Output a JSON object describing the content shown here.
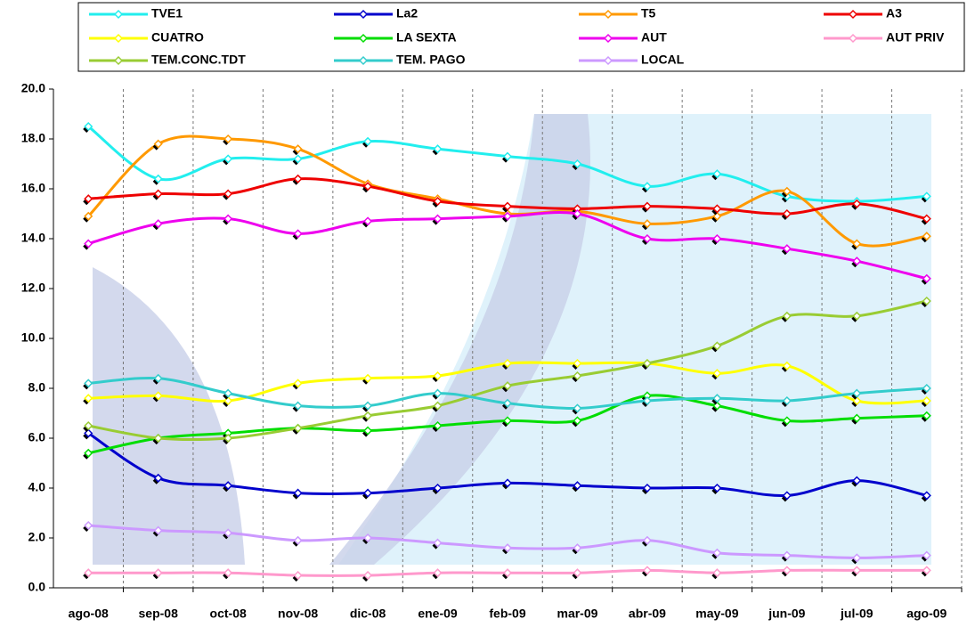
{
  "chart_data": {
    "type": "line",
    "categories": [
      "ago-08",
      "sep-08",
      "oct-08",
      "nov-08",
      "dic-08",
      "ene-09",
      "feb-09",
      "mar-09",
      "abr-09",
      "may-09",
      "jun-09",
      "jul-09",
      "ago-09"
    ],
    "ylim": [
      0,
      20
    ],
    "yticks": [
      {
        "value": 0,
        "label": "0.0"
      },
      {
        "value": 2,
        "label": "2.0"
      },
      {
        "value": 4,
        "label": "4.0"
      },
      {
        "value": 6,
        "label": "6.0"
      },
      {
        "value": 8,
        "label": "8.0"
      },
      {
        "value": 10,
        "label": "10.0"
      },
      {
        "value": 12,
        "label": "12.0"
      },
      {
        "value": 14,
        "label": "14.0"
      },
      {
        "value": 16,
        "label": "16.0"
      },
      {
        "value": 18,
        "label": "18.0"
      },
      {
        "value": 20,
        "label": "20.0"
      }
    ],
    "grid": true,
    "series": [
      {
        "name": "TVE1",
        "color": "#22eeee",
        "values": [
          18.5,
          16.4,
          17.2,
          17.2,
          17.9,
          17.6,
          17.3,
          17.0,
          16.1,
          16.6,
          15.7,
          15.5,
          15.7
        ]
      },
      {
        "name": "La2",
        "color": "#0000cc",
        "values": [
          6.2,
          4.4,
          4.1,
          3.8,
          3.8,
          4.0,
          4.2,
          4.1,
          4.0,
          4.0,
          3.7,
          4.3,
          3.7
        ]
      },
      {
        "name": "T5",
        "color": "#ff9900",
        "values": [
          14.9,
          17.8,
          18.0,
          17.6,
          16.2,
          15.6,
          15.0,
          15.1,
          14.6,
          14.9,
          15.9,
          13.8,
          14.1
        ]
      },
      {
        "name": "A3",
        "color": "#ee0000",
        "values": [
          15.6,
          15.8,
          15.8,
          16.4,
          16.1,
          15.5,
          15.3,
          15.2,
          15.3,
          15.2,
          15.0,
          15.4,
          14.8
        ]
      },
      {
        "name": "CUATRO",
        "color": "#ffff00",
        "values": [
          7.6,
          7.7,
          7.5,
          8.2,
          8.4,
          8.5,
          9.0,
          9.0,
          9.0,
          8.6,
          8.9,
          7.5,
          7.5
        ]
      },
      {
        "name": "LA SEXTA",
        "color": "#00dd00",
        "values": [
          5.4,
          6.0,
          6.2,
          6.4,
          6.3,
          6.5,
          6.7,
          6.7,
          7.7,
          7.3,
          6.7,
          6.8,
          6.9
        ]
      },
      {
        "name": "AUT",
        "color": "#ee00ee",
        "values": [
          13.8,
          14.6,
          14.8,
          14.2,
          14.7,
          14.8,
          14.9,
          15.0,
          14.0,
          14.0,
          13.6,
          13.1,
          12.4
        ]
      },
      {
        "name": "AUT PRIV",
        "color": "#ff99cc",
        "values": [
          0.6,
          0.6,
          0.6,
          0.5,
          0.5,
          0.6,
          0.6,
          0.6,
          0.7,
          0.6,
          0.7,
          0.7,
          0.7
        ]
      },
      {
        "name": "TEM.CONC.TDT",
        "color": "#99cc33",
        "values": [
          6.5,
          6.0,
          6.0,
          6.4,
          6.9,
          7.3,
          8.1,
          8.5,
          9.0,
          9.7,
          10.9,
          10.9,
          11.5
        ]
      },
      {
        "name": "TEM. PAGO",
        "color": "#33cccc",
        "values": [
          8.2,
          8.4,
          7.8,
          7.3,
          7.3,
          7.8,
          7.4,
          7.2,
          7.5,
          7.6,
          7.5,
          7.8,
          8.0
        ]
      },
      {
        "name": "LOCAL",
        "color": "#cc99ff",
        "values": [
          2.5,
          2.3,
          2.2,
          1.9,
          2.0,
          1.8,
          1.6,
          1.6,
          1.9,
          1.4,
          1.3,
          1.2,
          1.3
        ]
      }
    ]
  }
}
